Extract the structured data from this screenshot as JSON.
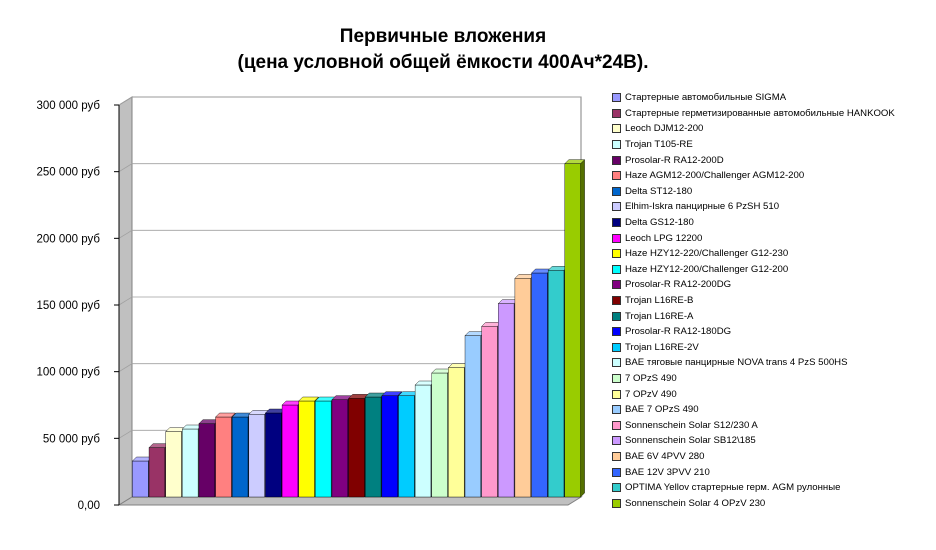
{
  "chart_data": {
    "type": "bar",
    "title": "Первичные вложения",
    "subtitle": "(цена  условной общей ёмкости 400Ач*24В).",
    "ylim": [
      0,
      300000
    ],
    "ytick_values": [
      0,
      50000,
      100000,
      150000,
      200000,
      250000,
      300000
    ],
    "ytick_labels": [
      "0,00",
      "50 000  руб",
      "100 000  руб",
      "150 000  руб",
      "200 000  руб",
      "250 000  руб",
      "300 000  руб"
    ],
    "grid": true,
    "legend_position": "right",
    "series": [
      {
        "name": "Стартерные автомобильные SIGMA",
        "value": 27000,
        "color": "#9999ff"
      },
      {
        "name": "Стартерные герметизированные автомобильные HANKOOK",
        "value": 37000,
        "color": "#993366"
      },
      {
        "name": "Leoch DJM12-200",
        "value": 49000,
        "color": "#ffffcc"
      },
      {
        "name": "Trojan T105-RE",
        "value": 51000,
        "color": "#ccffff"
      },
      {
        "name": "Prosolar-R RA12-200D",
        "value": 55000,
        "color": "#660066"
      },
      {
        "name": "Haze AGM12-200/Challenger AGM12-200",
        "value": 60000,
        "color": "#ff8080"
      },
      {
        "name": "Delta ST12-180",
        "value": 60000,
        "color": "#0066cc"
      },
      {
        "name": "Elhim-Iskra панцирные 6 PzSH 510",
        "value": 62000,
        "color": "#ccccff"
      },
      {
        "name": "Delta GS12-180",
        "value": 63000,
        "color": "#000080"
      },
      {
        "name": "Leoch LPG 12200",
        "value": 69000,
        "color": "#ff00ff"
      },
      {
        "name": "Haze HZY12-220/Challenger G12-230",
        "value": 72000,
        "color": "#ffff00"
      },
      {
        "name": "Haze HZY12-200/Challenger G12-200",
        "value": 72000,
        "color": "#00ffff"
      },
      {
        "name": "Prosolar-R RA12-200DG",
        "value": 73000,
        "color": "#800080"
      },
      {
        "name": "Trojan L16RE-B",
        "value": 74000,
        "color": "#800000"
      },
      {
        "name": "Trojan L16RE-A",
        "value": 75000,
        "color": "#008080"
      },
      {
        "name": "Prosolar-R RA12-180DG",
        "value": 76000,
        "color": "#0000ff"
      },
      {
        "name": "Trojan L16RE-2V",
        "value": 76000,
        "color": "#00ccff"
      },
      {
        "name": "BAE тяговые панцирные NOVA trans 4 PzS 500HS",
        "value": 84000,
        "color": "#ccffff"
      },
      {
        "name": "7 OPzS 490",
        "value": 93000,
        "color": "#ccffcc"
      },
      {
        "name": "7 OPzV 490",
        "value": 97000,
        "color": "#ffff99"
      },
      {
        "name": "BAE 7 OPzS 490",
        "value": 121000,
        "color": "#99ccff"
      },
      {
        "name": "Sonnenschein Solar S12/230 A",
        "value": 128000,
        "color": "#ff99cc"
      },
      {
        "name": "Sonnenschein Solar SB12\\185",
        "value": 145000,
        "color": "#cc99ff"
      },
      {
        "name": "BAE 6V 4PVV 280",
        "value": 164000,
        "color": "#ffcc99"
      },
      {
        "name": "BAE 12V 3PVV 210",
        "value": 168000,
        "color": "#3366ff"
      },
      {
        "name": "OPTIMA Yellov стартерные герм. AGM рулонные",
        "value": 170000,
        "color": "#33cccc"
      },
      {
        "name": "Sonnenschein Solar 4 OPzV 230",
        "value": 250000,
        "color": "#99cc00"
      }
    ]
  }
}
